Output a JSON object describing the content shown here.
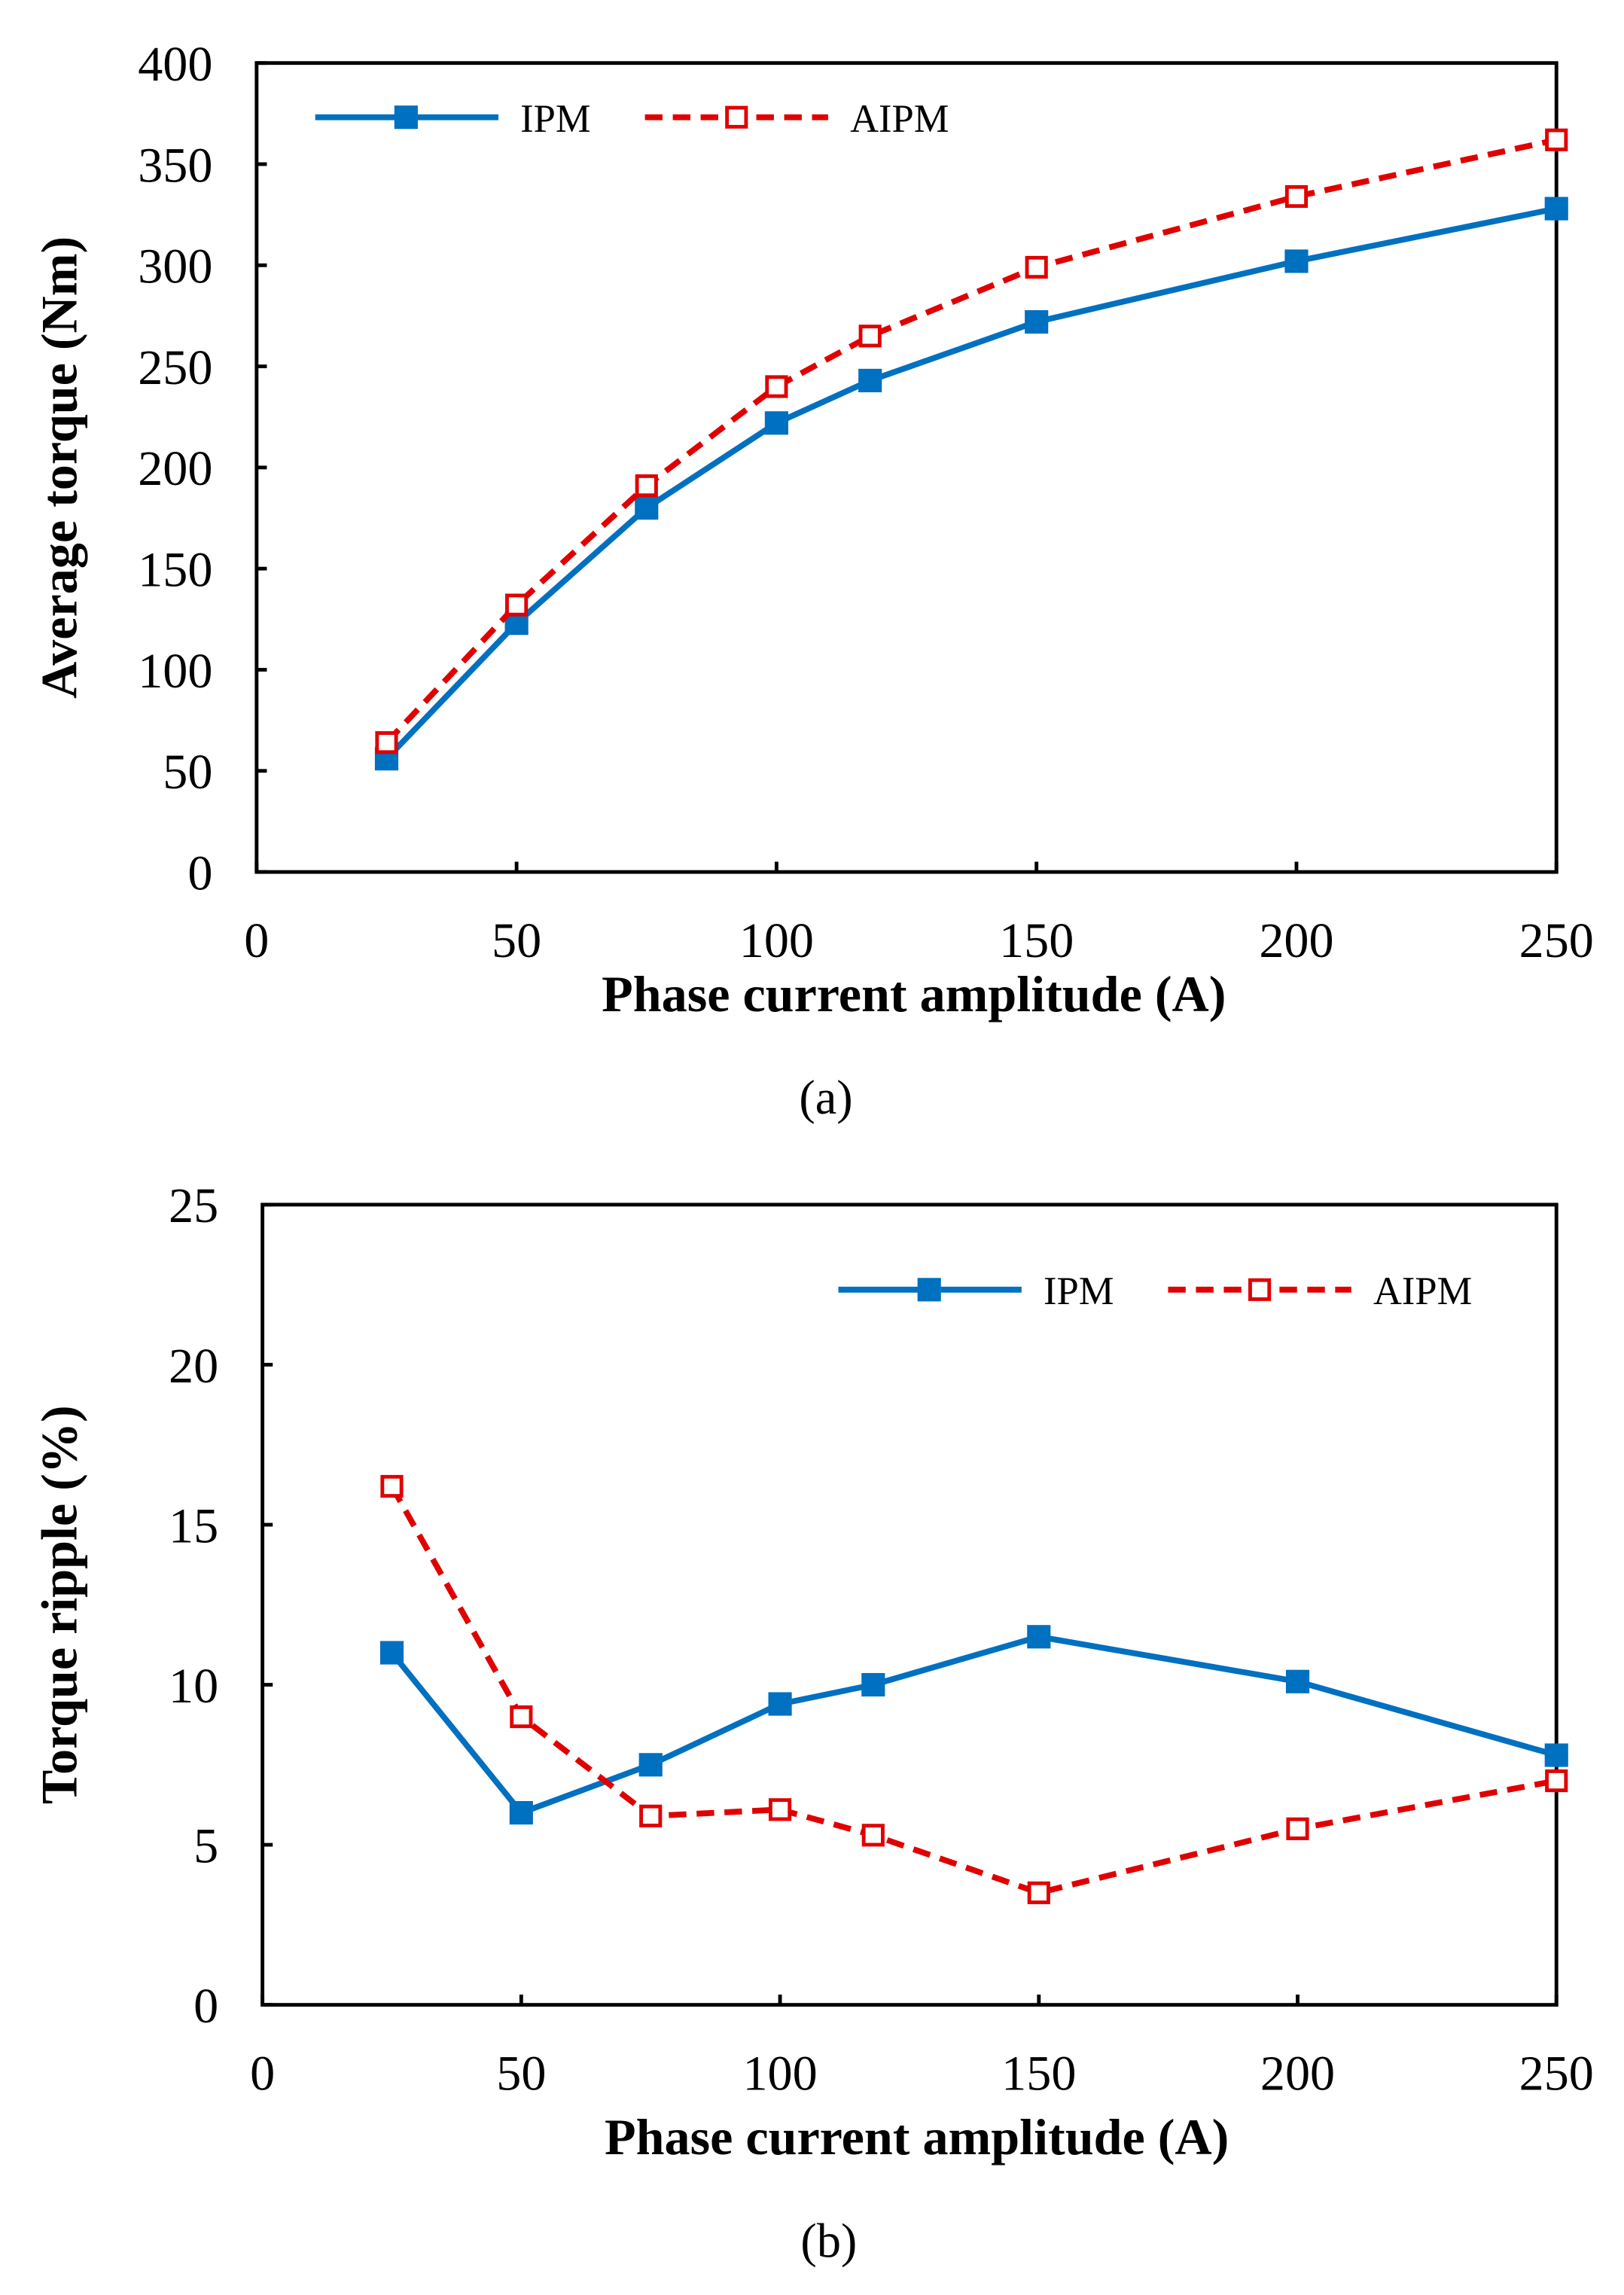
{
  "chart_data": [
    {
      "type": "line",
      "caption": "(a)",
      "xlabel": "Phase current amplitude (A)",
      "ylabel": "Average torque (Nm)",
      "xlim": [
        0,
        250
      ],
      "ylim": [
        0,
        400
      ],
      "xticks": [
        0,
        50,
        100,
        150,
        200,
        250
      ],
      "yticks": [
        0,
        50,
        100,
        150,
        200,
        250,
        300,
        350,
        400
      ],
      "grid": false,
      "legend_position": "top-left",
      "x": [
        25,
        50,
        75,
        100,
        118,
        150,
        200,
        250
      ],
      "series": [
        {
          "name": "IPM",
          "color": "#0070C0",
          "style": "solid",
          "marker": "filled-square",
          "values": [
            56,
            123,
            180,
            222,
            243,
            272,
            302,
            328
          ]
        },
        {
          "name": "AIPM",
          "color": "#E00000",
          "style": "dashed",
          "marker": "open-square",
          "values": [
            64,
            132,
            191,
            240,
            265,
            299,
            334,
            362
          ]
        }
      ]
    },
    {
      "type": "line",
      "caption": "(b)",
      "xlabel": "Phase current amplitude (A)",
      "ylabel": "Torque ripple (%)",
      "xlim": [
        0,
        250
      ],
      "ylim": [
        0,
        25
      ],
      "xticks": [
        0,
        50,
        100,
        150,
        200,
        250
      ],
      "yticks": [
        0,
        5,
        10,
        15,
        20,
        25
      ],
      "grid": false,
      "legend_position": "top-right",
      "x": [
        25,
        50,
        75,
        100,
        118,
        150,
        200,
        250
      ],
      "series": [
        {
          "name": "IPM",
          "color": "#0070C0",
          "style": "solid",
          "marker": "filled-square",
          "values": [
            11.0,
            6.0,
            7.5,
            9.4,
            10.0,
            11.5,
            10.1,
            7.8
          ]
        },
        {
          "name": "AIPM",
          "color": "#E00000",
          "style": "dashed",
          "marker": "open-square",
          "values": [
            16.2,
            9.0,
            5.9,
            6.1,
            5.3,
            3.5,
            5.5,
            7.0
          ]
        }
      ]
    }
  ]
}
